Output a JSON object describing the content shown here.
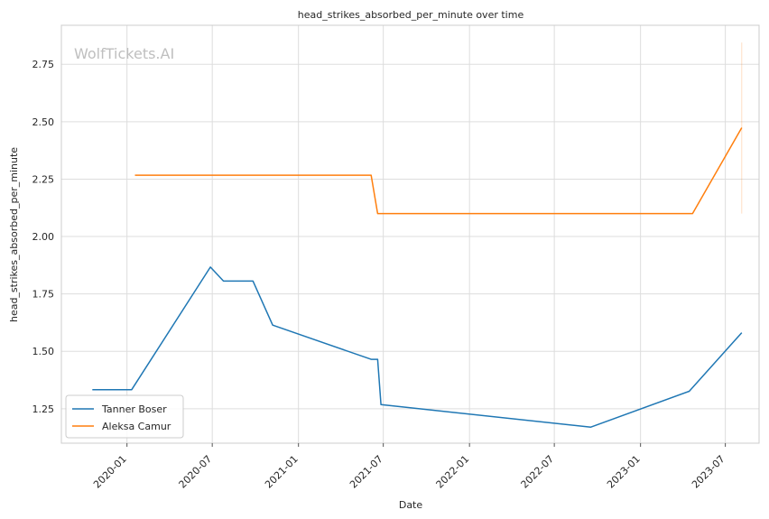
{
  "chart_data": {
    "type": "line",
    "title": "head_strikes_absorbed_per_minute over time",
    "xlabel": "Date",
    "ylabel": "head_strikes_absorbed_per_minute",
    "watermark": "WolfTickets.AI",
    "xlim": [
      "2019-08-14",
      "2023-09-11"
    ],
    "ylim": [
      1.1,
      2.92
    ],
    "x_ticks": [
      "2020-01-01",
      "2020-07-01",
      "2021-01-01",
      "2021-07-01",
      "2022-01-01",
      "2022-07-01",
      "2023-01-01",
      "2023-07-01"
    ],
    "x_tick_labels": [
      "2020-01",
      "2020-07",
      "2021-01",
      "2021-07",
      "2022-01",
      "2022-07",
      "2023-01",
      "2023-07"
    ],
    "y_ticks": [
      1.25,
      1.5,
      1.75,
      2.0,
      2.25,
      2.5,
      2.75
    ],
    "y_tick_labels": [
      "1.25",
      "1.50",
      "1.75",
      "2.00",
      "2.25",
      "2.50",
      "2.75"
    ],
    "grid": true,
    "legend_position": "lower-left",
    "series": [
      {
        "name": "Tanner Boser",
        "color": "#1f77b4",
        "points": [
          {
            "x": "2019-10-19",
            "y": 1.333
          },
          {
            "x": "2020-01-11",
            "y": 1.333
          },
          {
            "x": "2020-06-27",
            "y": 1.867
          },
          {
            "x": "2020-07-25",
            "y": 1.806
          },
          {
            "x": "2020-09-26",
            "y": 1.806
          },
          {
            "x": "2020-11-07",
            "y": 1.614
          },
          {
            "x": "2021-06-05",
            "y": 1.465
          },
          {
            "x": "2021-06-19",
            "y": 1.465
          },
          {
            "x": "2021-06-26",
            "y": 1.268
          },
          {
            "x": "2022-09-17",
            "y": 1.17
          },
          {
            "x": "2023-04-15",
            "y": 1.326
          },
          {
            "x": "2023-08-05",
            "y": 1.581
          }
        ]
      },
      {
        "name": "Aleksa Camur",
        "color": "#ff7f0e",
        "points": [
          {
            "x": "2020-01-18",
            "y": 2.267
          },
          {
            "x": "2021-06-05",
            "y": 2.267
          },
          {
            "x": "2021-06-19",
            "y": 2.1
          },
          {
            "x": "2023-04-22",
            "y": 2.1
          },
          {
            "x": "2023-08-05",
            "y": 2.474
          }
        ],
        "band": {
          "x": "2023-08-05",
          "low": 2.1,
          "high": 2.845
        }
      }
    ]
  }
}
